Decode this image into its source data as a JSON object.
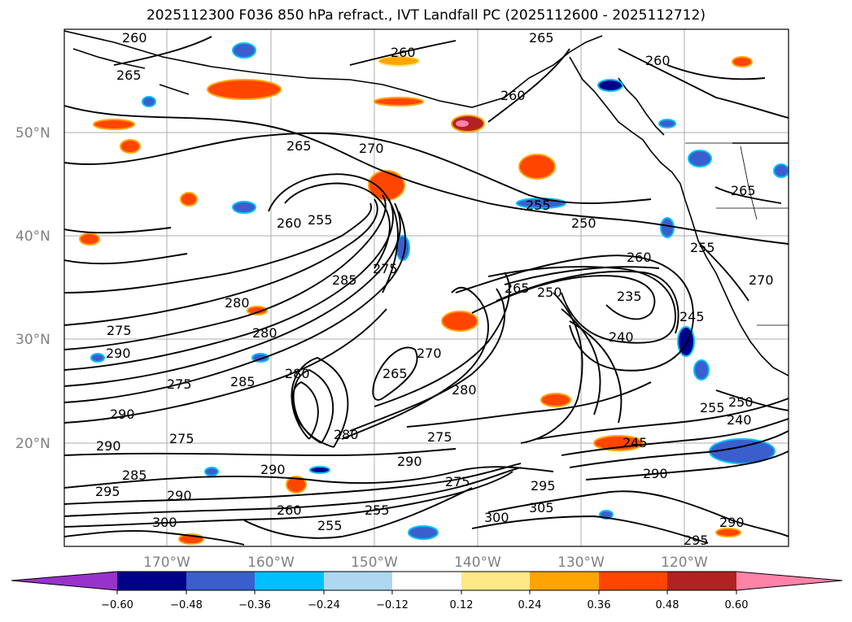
{
  "title": "2025112300 F036 850 hPa refract., IVT Landfall PC (2025112600 - 2025112712)",
  "map": {
    "lat_labels": [
      "50°N",
      "40°N",
      "30°N",
      "20°N"
    ],
    "lon_labels": [
      "170°W",
      "160°W",
      "150°W",
      "140°W",
      "130°W",
      "120°W"
    ],
    "contour_labels": [
      {
        "text": "260"
      },
      {
        "text": "265"
      },
      {
        "text": "265"
      },
      {
        "text": "260"
      },
      {
        "text": "260"
      },
      {
        "text": "260"
      },
      {
        "text": "265"
      },
      {
        "text": "270"
      },
      {
        "text": "255"
      },
      {
        "text": "260"
      },
      {
        "text": "255"
      },
      {
        "text": "250"
      },
      {
        "text": "265"
      },
      {
        "text": "255"
      },
      {
        "text": "275"
      },
      {
        "text": "285"
      },
      {
        "text": "280"
      },
      {
        "text": "275"
      },
      {
        "text": "280"
      },
      {
        "text": "290"
      },
      {
        "text": "280"
      },
      {
        "text": "285"
      },
      {
        "text": "270"
      },
      {
        "text": "265"
      },
      {
        "text": "280"
      },
      {
        "text": "260"
      },
      {
        "text": "235"
      },
      {
        "text": "240"
      },
      {
        "text": "245"
      },
      {
        "text": "250"
      },
      {
        "text": "240"
      },
      {
        "text": "255"
      },
      {
        "text": "275"
      },
      {
        "text": "290"
      },
      {
        "text": "290"
      },
      {
        "text": "275"
      },
      {
        "text": "290"
      },
      {
        "text": "285"
      },
      {
        "text": "295"
      },
      {
        "text": "290"
      },
      {
        "text": "300"
      },
      {
        "text": "260"
      },
      {
        "text": "255"
      },
      {
        "text": "255"
      },
      {
        "text": "275"
      },
      {
        "text": "290"
      },
      {
        "text": "300"
      },
      {
        "text": "305"
      },
      {
        "text": "295"
      },
      {
        "text": "290"
      },
      {
        "text": "295"
      },
      {
        "text": "265"
      },
      {
        "text": "275"
      },
      {
        "text": "290"
      },
      {
        "text": "280"
      },
      {
        "text": "270"
      },
      {
        "text": "250"
      },
      {
        "text": "245"
      }
    ]
  },
  "colorbar": {
    "tick_labels": [
      "−0.60",
      "−0.48",
      "−0.36",
      "−0.24",
      "−0.12",
      "0.12",
      "0.24",
      "0.36",
      "0.48",
      "0.60"
    ],
    "colors": [
      "#9932cc",
      "#00008b",
      "#3a5fcd",
      "#00bfff",
      "#add8f0",
      "#ffffff",
      "#ffe887",
      "#ffa500",
      "#ff4500",
      "#b22222",
      "#ff83a8"
    ]
  }
}
